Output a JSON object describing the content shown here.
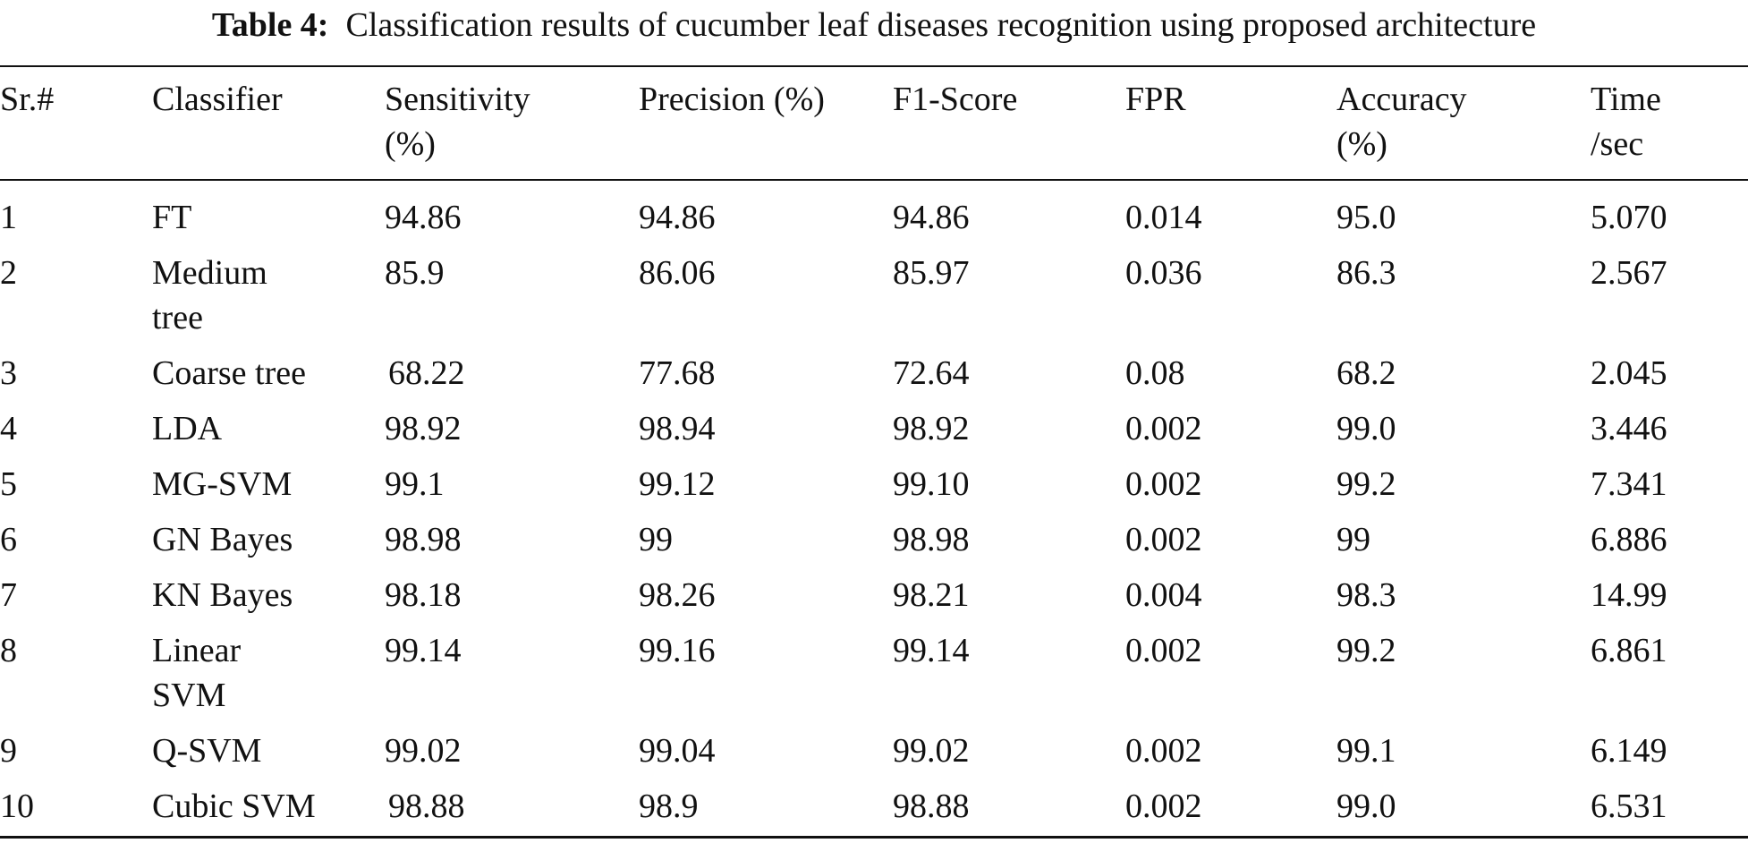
{
  "caption": {
    "label": "Table 4:",
    "text": "Classification results of cucumber leaf diseases recognition using proposed architecture"
  },
  "headers": {
    "sr": "Sr.#",
    "classifier": "Classifier",
    "sensitivity_1": "Sensitivity",
    "sensitivity_2": "(%)",
    "precision": "Precision (%)",
    "f1": "F1-Score",
    "fpr": "FPR",
    "accuracy_1": "Accuracy",
    "accuracy_2": "(%)",
    "time_1": "Time",
    "time_2": "/sec"
  },
  "rows": [
    {
      "sr": "1",
      "classifier_1": "FT",
      "classifier_2": "",
      "sensitivity": "94.86",
      "precision": "94.86",
      "f1": "94.86",
      "fpr": "0.014",
      "accuracy": "95.0",
      "time": "5.070"
    },
    {
      "sr": "2",
      "classifier_1": "Medium",
      "classifier_2": "tree",
      "sensitivity": "85.9",
      "precision": "86.06",
      "f1": "85.97",
      "fpr": "0.036",
      "accuracy": "86.3",
      "time": "2.567"
    },
    {
      "sr": "3",
      "classifier_1": "Coarse tree",
      "classifier_2": "",
      "sensitivity": "68.22",
      "precision": "77.68",
      "f1": "72.64",
      "fpr": "0.08",
      "accuracy": "68.2",
      "time": "2.045"
    },
    {
      "sr": "4",
      "classifier_1": "LDA",
      "classifier_2": "",
      "sensitivity": "98.92",
      "precision": "98.94",
      "f1": "98.92",
      "fpr": "0.002",
      "accuracy": "99.0",
      "time": "3.446"
    },
    {
      "sr": "5",
      "classifier_1": "MG-SVM",
      "classifier_2": "",
      "sensitivity": "99.1",
      "precision": "99.12",
      "f1": "99.10",
      "fpr": "0.002",
      "accuracy": "99.2",
      "time": "7.341"
    },
    {
      "sr": "6",
      "classifier_1": "GN Bayes",
      "classifier_2": "",
      "sensitivity": "98.98",
      "precision": "99",
      "f1": "98.98",
      "fpr": "0.002",
      "accuracy": "99",
      "time": "6.886"
    },
    {
      "sr": "7",
      "classifier_1": "KN Bayes",
      "classifier_2": "",
      "sensitivity": "98.18",
      "precision": "98.26",
      "f1": "98.21",
      "fpr": "0.004",
      "accuracy": "98.3",
      "time": "14.99"
    },
    {
      "sr": "8",
      "classifier_1": "Linear",
      "classifier_2": "SVM",
      "sensitivity": "99.14",
      "precision": "99.16",
      "f1": "99.14",
      "fpr": "0.002",
      "accuracy": "99.2",
      "time": "6.861"
    },
    {
      "sr": "9",
      "classifier_1": "Q-SVM",
      "classifier_2": "",
      "sensitivity": "99.02",
      "precision": "99.04",
      "f1": "99.02",
      "fpr": "0.002",
      "accuracy": "99.1",
      "time": "6.149"
    },
    {
      "sr": "10",
      "classifier_1": "Cubic SVM",
      "classifier_2": "",
      "sensitivity": "98.88",
      "precision": "98.9",
      "f1": "98.88",
      "fpr": "0.002",
      "accuracy": "99.0",
      "time": "6.531"
    }
  ]
}
